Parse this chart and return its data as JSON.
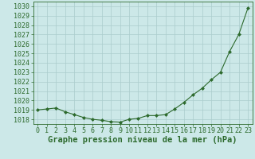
{
  "x": [
    0,
    1,
    2,
    3,
    4,
    5,
    6,
    7,
    8,
    9,
    10,
    11,
    12,
    13,
    14,
    15,
    16,
    17,
    18,
    19,
    20,
    21,
    22,
    23
  ],
  "y": [
    1019.0,
    1019.1,
    1019.2,
    1018.8,
    1018.5,
    1018.2,
    1018.0,
    1017.9,
    1017.75,
    1017.7,
    1018.0,
    1018.1,
    1018.4,
    1018.4,
    1018.5,
    1019.1,
    1019.8,
    1020.6,
    1021.3,
    1022.2,
    1023.0,
    1025.2,
    1027.0,
    1029.8
  ],
  "line_color": "#2d6a2d",
  "marker": "D",
  "marker_size": 2.0,
  "linewidth": 0.8,
  "bg_color": "#cce8e8",
  "grid_color": "#aacccc",
  "xlabel": "Graphe pression niveau de la mer (hPa)",
  "xlabel_fontsize": 7.5,
  "ylabel_fontsize": 6,
  "tick_fontsize": 6,
  "ylim": [
    1017.5,
    1030.5
  ],
  "yticks": [
    1018,
    1019,
    1020,
    1021,
    1022,
    1023,
    1024,
    1025,
    1026,
    1027,
    1028,
    1029,
    1030
  ],
  "xlim": [
    -0.5,
    23.5
  ],
  "xticks": [
    0,
    1,
    2,
    3,
    4,
    5,
    6,
    7,
    8,
    9,
    10,
    11,
    12,
    13,
    14,
    15,
    16,
    17,
    18,
    19,
    20,
    21,
    22,
    23
  ]
}
